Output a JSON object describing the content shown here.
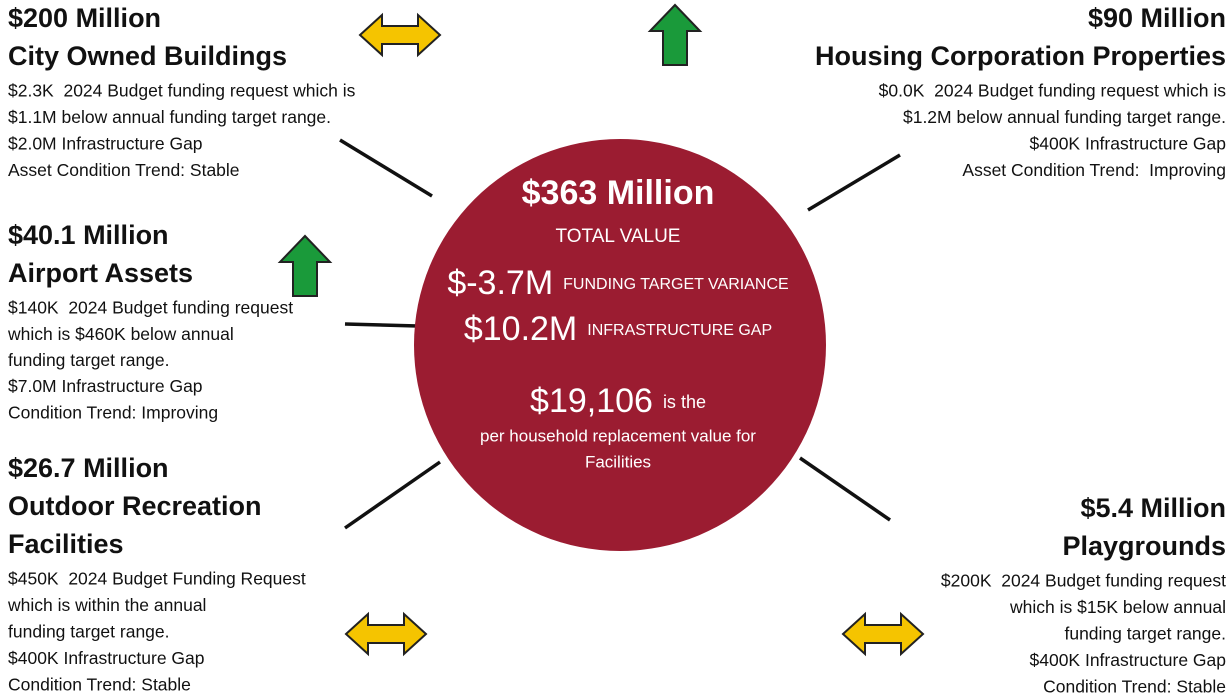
{
  "center": {
    "total_value": "$363 Million",
    "total_label": "TOTAL VALUE",
    "variance_value": "$-3.7M",
    "variance_label": "FUNDING TARGET VARIANCE",
    "gap_value": "$10.2M",
    "gap_label": "INFRASTRUCTURE GAP",
    "household_value": "$19,106",
    "household_suffix": "is the",
    "household_lines": [
      "per household replacement value for",
      "Facilities"
    ]
  },
  "sections": [
    {
      "value": "$200 Million",
      "title": [
        "City Owned Buildings"
      ],
      "details": [
        "$2.3K  2024 Budget funding request which is",
        "$1.1M below annual funding target range.",
        "$2.0M Infrastructure Gap",
        "Asset Condition Trend: Stable"
      ]
    },
    {
      "value": "$90 Million",
      "title": [
        "Housing Corporation Properties"
      ],
      "details": [
        "$0.0K  2024 Budget funding request which is",
        "$1.2M below annual funding target range.",
        "$400K Infrastructure Gap",
        "Asset Condition Trend:  Improving"
      ]
    },
    {
      "value": "$40.1 Million",
      "title": [
        "Airport Assets"
      ],
      "details": [
        "$140K  2024 Budget funding request",
        "which is $460K below annual",
        "funding target range.",
        "$7.0M Infrastructure Gap",
        "Condition Trend: Improving"
      ]
    },
    {
      "value": "$26.7 Million",
      "title": [
        "Outdoor Recreation",
        "Facilities"
      ],
      "details": [
        "$450K  2024 Budget Funding Request",
        "which is within the annual",
        "funding target range.",
        "$400K Infrastructure Gap",
        "Condition Trend: Stable"
      ]
    },
    {
      "value": "$5.4 Million",
      "title": [
        "Playgrounds"
      ],
      "details": [
        "$200K  2024 Budget funding request",
        "which is $15K below annual",
        "funding target range.",
        "$400K Infrastructure Gap",
        "Condition Trend: Stable"
      ]
    }
  ]
}
